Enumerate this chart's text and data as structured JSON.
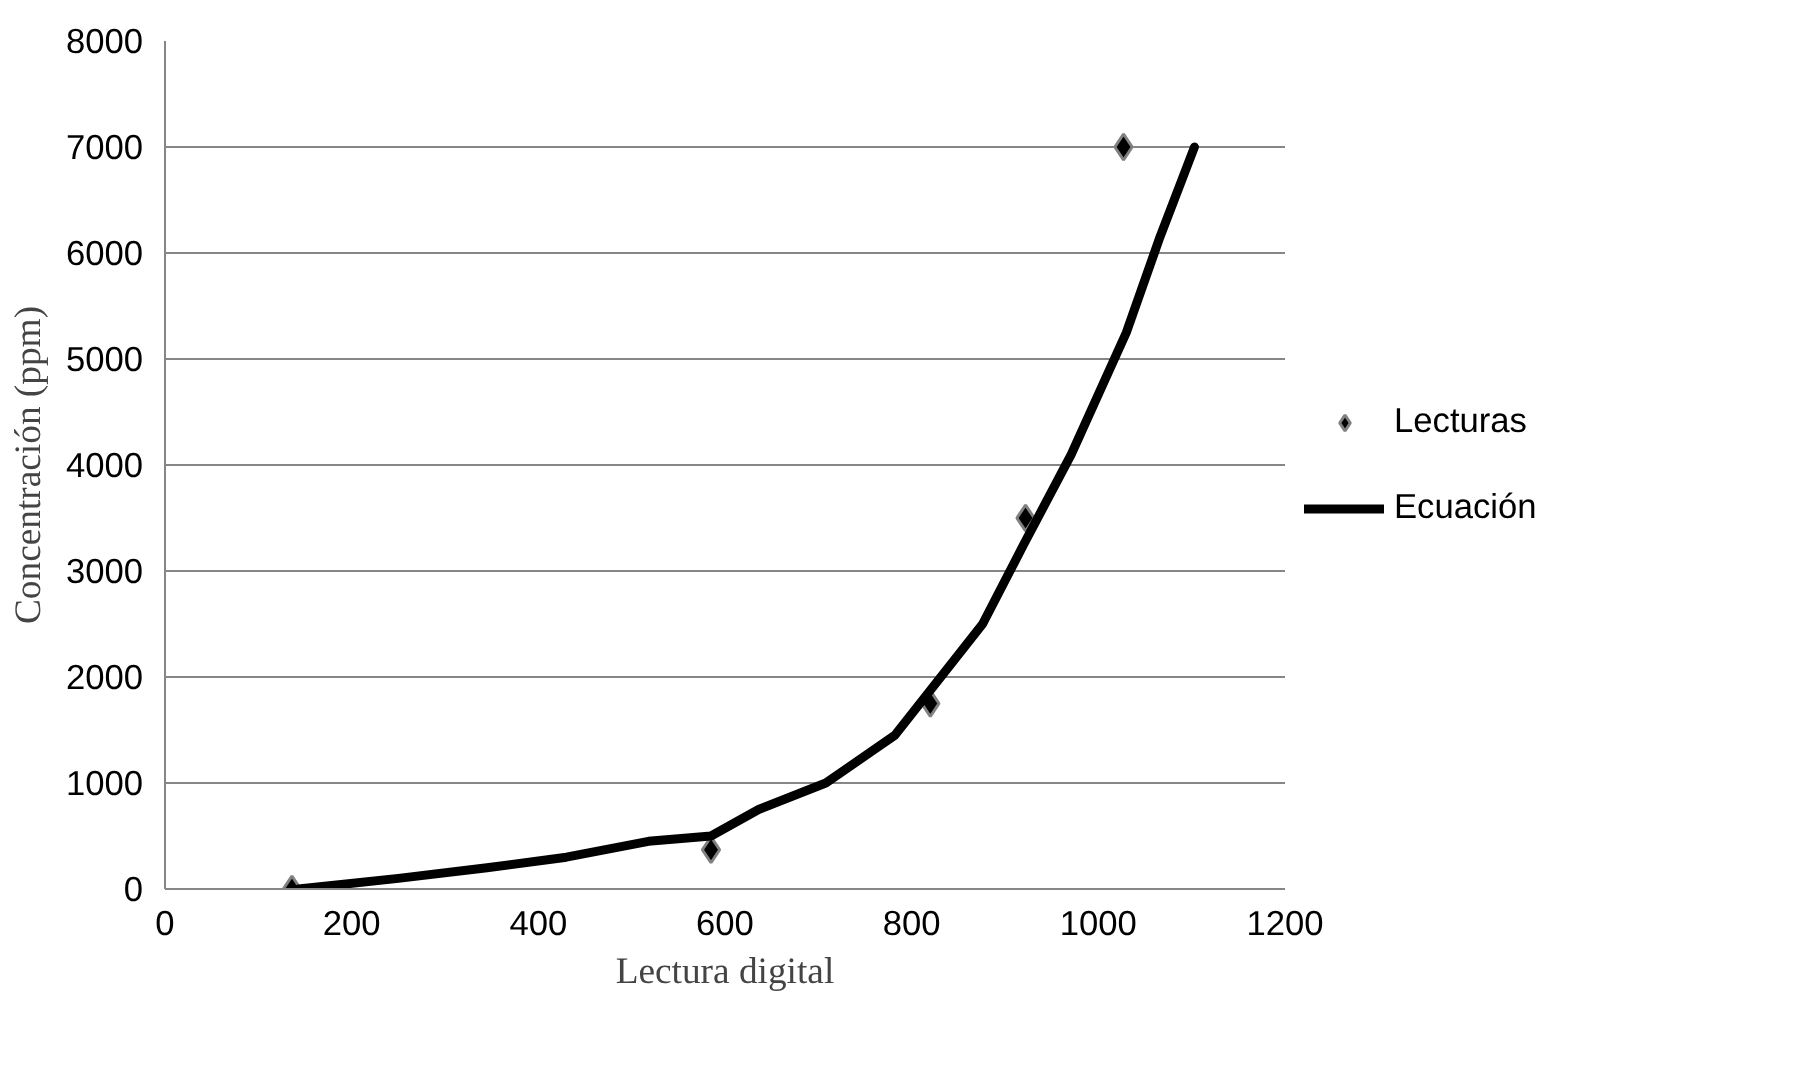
{
  "chart_data": {
    "type": "scatter",
    "xlabel": "Lectura digital",
    "ylabel": "Concentración (ppm)",
    "xlim": [
      0,
      1200
    ],
    "ylim": [
      0,
      8000
    ],
    "xticks": [
      0,
      200,
      400,
      600,
      800,
      1000,
      1200
    ],
    "yticks": [
      0,
      1000,
      2000,
      3000,
      4000,
      5000,
      6000,
      7000,
      8000
    ],
    "grid": "y",
    "legend": "right",
    "marker": "diamond",
    "series": [
      {
        "name": "Lecturas",
        "color": "#000000",
        "x": [
          136,
          585,
          820,
          922,
          1027
        ],
        "values": [
          0,
          370,
          1750,
          3500,
          7000
        ]
      },
      {
        "name": "Ecuación",
        "type": "line",
        "color": "#000000",
        "line_style": "solid",
        "marker": "none",
        "x": [
          143,
          250,
          345,
          430,
          518,
          585,
          636,
          708,
          782,
          876,
          920,
          971,
          1030,
          1066,
          1103
        ],
        "values": [
          0,
          100,
          200,
          300,
          450,
          500,
          750,
          1000,
          1450,
          2500,
          3250,
          4100,
          5250,
          6150,
          7000
        ]
      }
    ]
  }
}
